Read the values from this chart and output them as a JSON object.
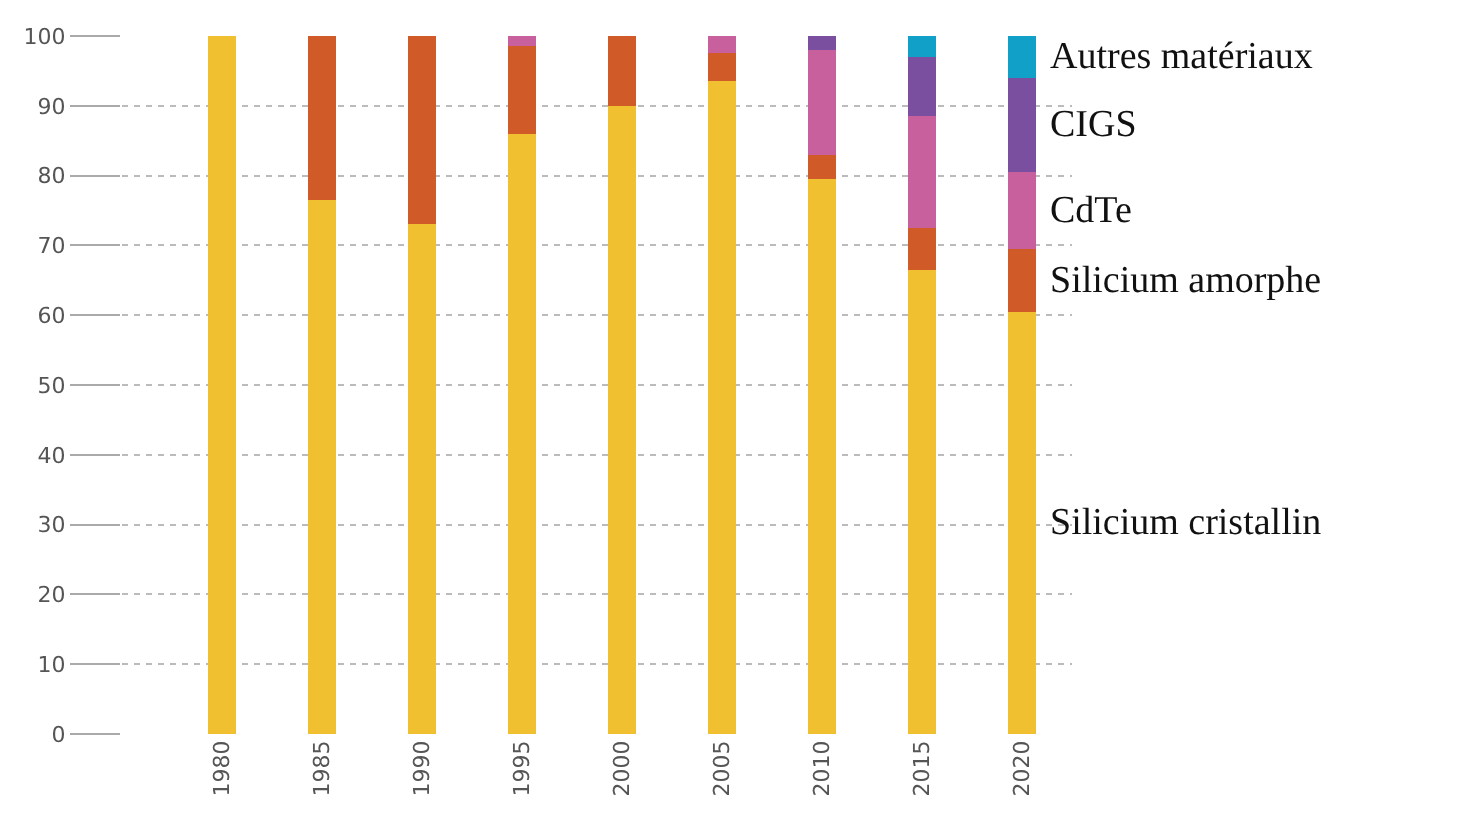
{
  "chart_data": {
    "type": "bar",
    "stacked": true,
    "categories": [
      "1980",
      "1985",
      "1990",
      "1995",
      "2000",
      "2005",
      "2010",
      "2015",
      "2020"
    ],
    "series": [
      {
        "name": "Silicium cristallin",
        "color": "#f0c030",
        "values": [
          100,
          76.5,
          73,
          86,
          90,
          93.5,
          79.5,
          66.5,
          60.5
        ]
      },
      {
        "name": "Silicium amorphe",
        "color": "#d05a28",
        "values": [
          0,
          23.5,
          27,
          12.5,
          10,
          4,
          3.5,
          6,
          9
        ]
      },
      {
        "name": "CdTe",
        "color": "#c8609e",
        "values": [
          0,
          0,
          0,
          1.5,
          0,
          2.5,
          15,
          16,
          11
        ]
      },
      {
        "name": "CIGS",
        "color": "#7b4fa0",
        "values": [
          0,
          0,
          0,
          0,
          0,
          0,
          2,
          8.5,
          13.5
        ]
      },
      {
        "name": "Autres matériaux",
        "color": "#10a0c8",
        "values": [
          0,
          0,
          0,
          0,
          0,
          0,
          0,
          3,
          6
        ]
      }
    ],
    "ylim": [
      0,
      100
    ],
    "yticks": [
      0,
      10,
      20,
      30,
      40,
      50,
      60,
      70,
      80,
      90,
      100
    ],
    "grid": "y",
    "legend": false
  }
}
